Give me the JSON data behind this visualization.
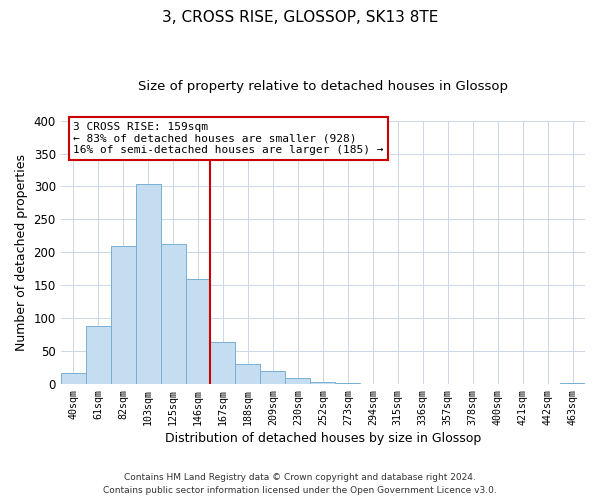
{
  "title": "3, CROSS RISE, GLOSSOP, SK13 8TE",
  "subtitle": "Size of property relative to detached houses in Glossop",
  "xlabel": "Distribution of detached houses by size in Glossop",
  "ylabel": "Number of detached properties",
  "bar_color": "#c5ddf0",
  "bar_edge_color": "#7aafd4",
  "categories": [
    "40sqm",
    "61sqm",
    "82sqm",
    "103sqm",
    "125sqm",
    "146sqm",
    "167sqm",
    "188sqm",
    "209sqm",
    "230sqm",
    "252sqm",
    "273sqm",
    "294sqm",
    "315sqm",
    "336sqm",
    "357sqm",
    "378sqm",
    "400sqm",
    "421sqm",
    "442sqm",
    "463sqm"
  ],
  "values": [
    17,
    89,
    210,
    304,
    213,
    160,
    64,
    30,
    20,
    10,
    3,
    2,
    0,
    0,
    1,
    0,
    0,
    1,
    0,
    0,
    2
  ],
  "ylim": [
    0,
    400
  ],
  "yticks": [
    0,
    50,
    100,
    150,
    200,
    250,
    300,
    350,
    400
  ],
  "vline_index": 6,
  "vline_color": "#cc0000",
  "annotation_line1": "3 CROSS RISE: 159sqm",
  "annotation_line2": "← 83% of detached houses are smaller (928)",
  "annotation_line3": "16% of semi-detached houses are larger (185) →",
  "annotation_box_color": "#ffffff",
  "annotation_box_edge": "#cc0000",
  "footer_line1": "Contains HM Land Registry data © Crown copyright and database right 2024.",
  "footer_line2": "Contains public sector information licensed under the Open Government Licence v3.0.",
  "background_color": "#ffffff",
  "grid_color": "#ccd8e8"
}
